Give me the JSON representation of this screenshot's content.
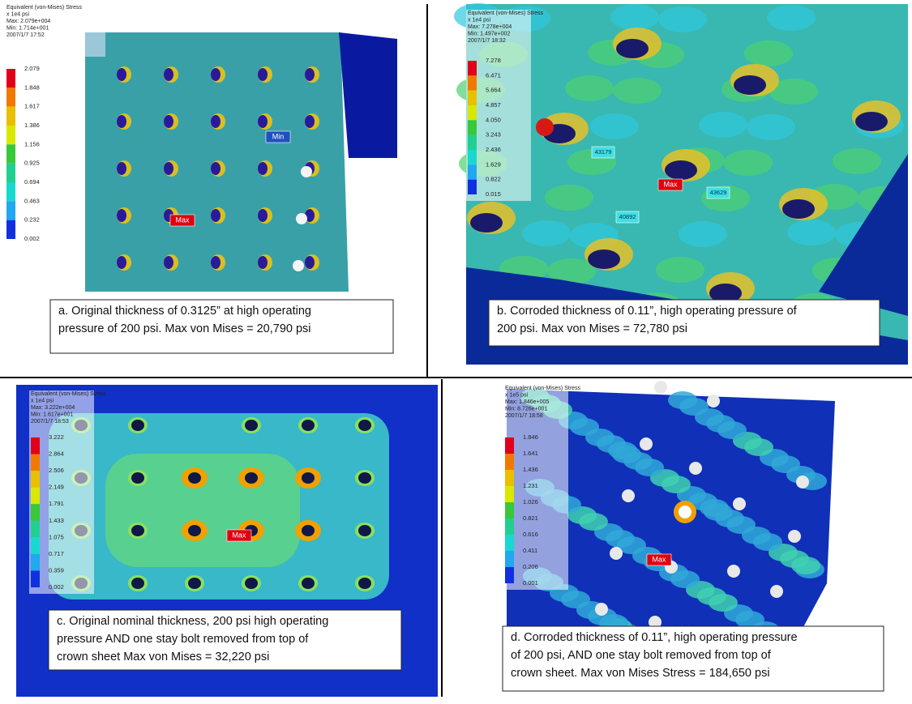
{
  "panels": [
    {
      "legend": {
        "title": "Equivalent (von-Mises) Stress",
        "unit": "x 1e4 psi",
        "max": "Max: 2.079e+004",
        "min": "Min: 1.714e+001",
        "date": "2007/1/7 17:52",
        "scale": [
          "2.079",
          "1.848",
          "1.617",
          "1.386",
          "1.156",
          "0.925",
          "0.694",
          "0.463",
          "0.232",
          "0.002"
        ]
      },
      "labels": [
        "Max",
        "Min"
      ],
      "caption": [
        "a. Original thickness of 0.3125” at high operating",
        "pressure of 200 psi.  Max von Mises = 20,790 psi"
      ]
    },
    {
      "legend": {
        "title": "Equivalent (von-Mises) Stress",
        "unit": "x 1e4 psi",
        "max": "Max: 7.278e+004",
        "min": "Min: 1.497e+002",
        "date": "2007/1/7 18:32",
        "scale": [
          "7.278",
          "6.471",
          "5.664",
          "4.857",
          "4.050",
          "3.243",
          "2.436",
          "1.629",
          "0.822",
          "0.015"
        ]
      },
      "labels": [
        "Max",
        "43179",
        "43629",
        "40892"
      ],
      "caption": [
        "b. Corroded thickness of 0.11”, high operating pressure of",
        "200 psi.  Max von Mises = 72,780 psi"
      ]
    },
    {
      "legend": {
        "title": "Equivalent (von-Mises) Stress",
        "unit": "x 1e4 psi",
        "max": "Max: 3.222e+004",
        "min": "Min: 1.617e+001",
        "date": "2007/1/7 18:53",
        "scale": [
          "3.222",
          "2.864",
          "2.506",
          "2.149",
          "1.791",
          "1.433",
          "1.075",
          "0.717",
          "0.359",
          "0.002"
        ]
      },
      "labels": [
        "Max"
      ],
      "caption": [
        "c. Original nominal thickness, 200 psi high operating",
        "pressure AND one stay bolt removed from top of",
        "crown sheet Max von Mises = 32,220 psi"
      ]
    },
    {
      "legend": {
        "title": "Equivalent (von-Mises) Stress",
        "unit": "x 1e5 psi",
        "max": "Max: 1.846e+005",
        "min": "Min: 8.726e+001",
        "date": "2007/1/7 18:58",
        "scale": [
          "1.846",
          "1.641",
          "1.436",
          "1.231",
          "1.026",
          "0.821",
          "0.616",
          "0.411",
          "0.206",
          "0.001"
        ]
      },
      "labels": [
        "Max"
      ],
      "caption": [
        "d.  Corroded thickness of 0.11”,  high operating pressure",
        "of 200 psi, AND one stay bolt removed from top of",
        "crown sheet.   Max von Mises Stress = 184,650 psi"
      ]
    }
  ]
}
